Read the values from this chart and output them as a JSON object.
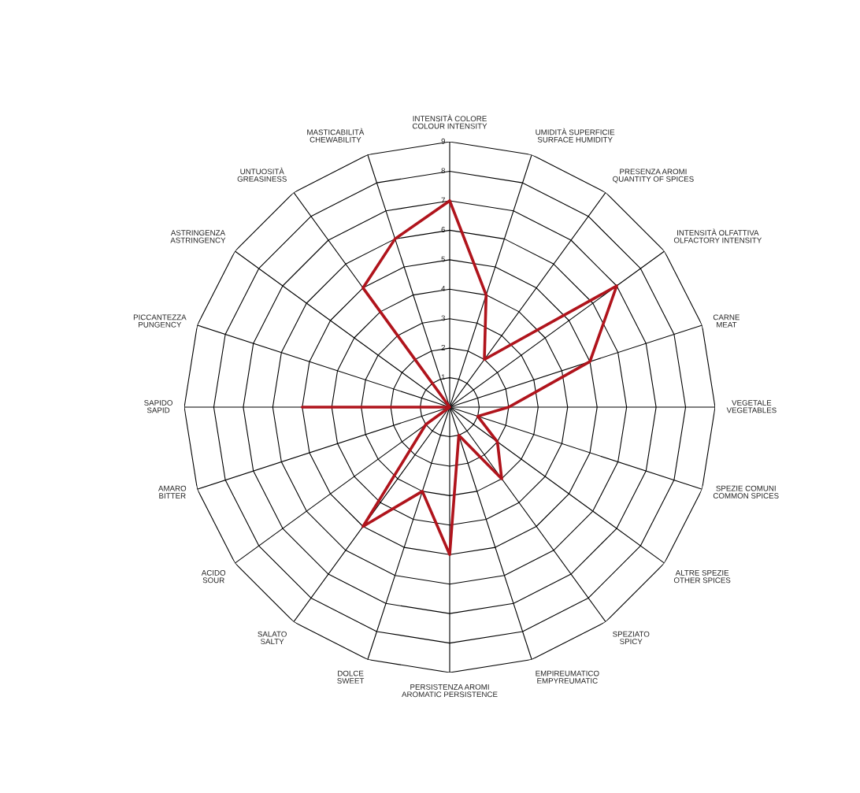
{
  "chart_data": {
    "type": "radar",
    "categories": [
      "INTENSITÀ COLORE\nCOLOUR INTENSITY",
      "UMIDITÀ SUPERFICIE\nSURFACE HUMIDITY",
      "PRESENZA AROMI\nQUANTITY OF SPICES",
      "INTENSITÀ OLFATTIVA\nOLFACTORY INTENSITY",
      "CARNE\nMEAT",
      "VEGETALE\nVEGETABLES",
      "SPEZIE COMUNI\nCOMMON SPICES",
      "ALTRE SPEZIE\nOTHER SPICES",
      "SPEZIATO\nSPICY",
      "EMPIREUMATICO\nEMPYREUMATIC",
      "PERSISTENZA AROMI\nAROMATIC PERSISTENCE",
      "DOLCE\nSWEET",
      "SALATO\nSALTY",
      "ACIDO\nSOUR",
      "AMARO\nBITTER",
      "SAPIDO\nSAPID",
      "PICCANTEZZA\nPUNGENCY",
      "ASTRINGENZA\nASTRINGENCY",
      "UNTUOSITÀ\nGREASINESS",
      "MASTICABILITÀ\nCHEWABILITY"
    ],
    "series": [
      {
        "color": "#b0141c",
        "values": [
          7,
          4,
          2,
          7,
          5,
          2,
          1,
          2,
          3,
          1,
          5,
          3,
          5,
          1,
          0,
          5,
          0,
          0,
          5,
          6
        ]
      }
    ],
    "ylim": [
      0,
      9
    ],
    "yticks": [
      1,
      2,
      3,
      4,
      5,
      6,
      7,
      8,
      9
    ],
    "grid": true
  }
}
